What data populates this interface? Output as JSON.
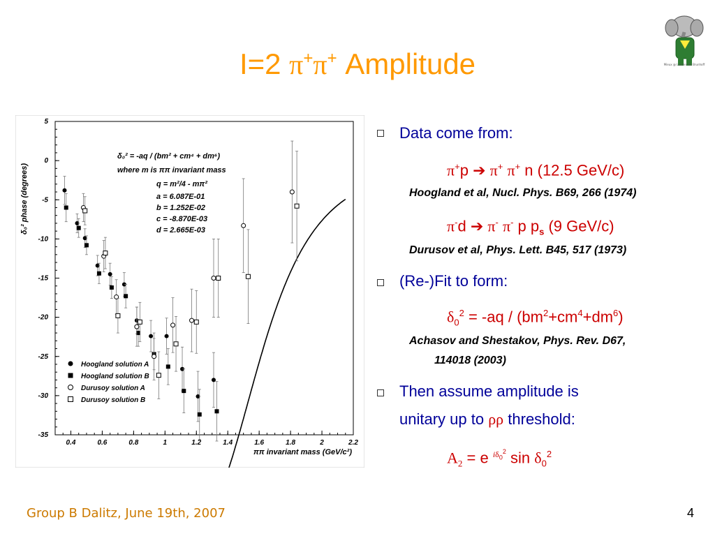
{
  "slide": {
    "title_prefix": "I=2 ",
    "title_greek": "π",
    "title_sup": "+",
    "title_suffix": " Amplitude",
    "footer": "Group B Dalitz, June 19th, 2007",
    "page_number": "4",
    "logo_caption": "Mieux @ Laurent de Brunhoff"
  },
  "colors": {
    "title": "#ff9900",
    "body_text": "#000099",
    "formula_red": "#cc0000",
    "footer": "#cc7a00"
  },
  "bullets": {
    "b1": "Data come from:",
    "r1_text": "p ",
    "r1_arrow": "➔",
    "r1_end": " n (12.5 GeV/c)",
    "ref1": "Hoogland et al, Nucl. Phys. B69, 266 (1974)",
    "r2_text": "d ",
    "r2_arrow": "➔",
    "r2_end": " p p",
    "r2_sub": "s",
    "r2_tail": " (9 GeV/c)",
    "ref2": "Durusov et al, Phys. Lett. B45, 517 (1973)",
    "b2": "(Re-)Fit to form:",
    "fit_formula": "= -aq / (bm",
    "fit_rest1": "+cm",
    "fit_rest2": "+dm",
    "fit_close": ")",
    "ref3a": "Achasov and Shestakov, Phys. Rev. D67,",
    "ref3b": "114018 (2003)",
    "b3a": "Then assume amplitude is",
    "b3b_pre": "unitary up to ",
    "b3b_greek": "ρρ",
    "b3b_post": " threshold:",
    "amp_A": "A",
    "amp_sub": "2",
    "amp_eq": " = e ",
    "amp_sin": " sin "
  },
  "chart_data": {
    "type": "scatter",
    "ylabel": "δ₀² phase (degrees)",
    "xlabel": "ππ invariant mass (GeV/c²)",
    "xlim": [
      0.3,
      2.2
    ],
    "ylim": [
      -35,
      5
    ],
    "xticks": [
      "0.4",
      "0.6",
      "0.8",
      "1",
      "1.2",
      "1.4",
      "1.6",
      "1.8",
      "2",
      "2.2"
    ],
    "yticks": [
      "5",
      "0",
      "-5",
      "-10",
      "-15",
      "-20",
      "-25",
      "-30",
      "-35"
    ],
    "annotation": {
      "formula": "δ₀² = -aq / (bm² + cm⁴ + dm⁶)",
      "where": "where  m  is  ππ  invariant mass",
      "q_def": "q = m²/4 - mπ²",
      "a": "a =  6.087E-01",
      "b": "b =  1.252E-02",
      "c": "c = -8.870E-03",
      "d": "d =  2.665E-03"
    },
    "legend": [
      "Hoogland solution A",
      "Hoogland solution B",
      "Durusoy solution A",
      "Durusoy solution B"
    ],
    "legend_placement": "bottom-left",
    "series": [
      {
        "name": "Hoogland solution A",
        "marker": "filled-circle",
        "points": [
          [
            0.36,
            -3.8,
            1.8
          ],
          [
            0.44,
            -8.0,
            1.2
          ],
          [
            0.49,
            -9.9,
            1.2
          ],
          [
            0.57,
            -13.4,
            1.3
          ],
          [
            0.65,
            -14.5,
            1.4
          ],
          [
            0.74,
            -15.8,
            1.5
          ],
          [
            0.82,
            -20.4,
            1.7
          ],
          [
            0.91,
            -22.4,
            2.0
          ],
          [
            1.01,
            -22.4,
            2.3
          ],
          [
            1.11,
            -26.6,
            2.8
          ],
          [
            1.21,
            -30.1,
            3.2
          ],
          [
            1.31,
            -28.0,
            3.5
          ]
        ]
      },
      {
        "name": "Hoogland solution B",
        "marker": "filled-square",
        "points": [
          [
            0.37,
            -6.0,
            1.8
          ],
          [
            0.45,
            -8.6,
            1.2
          ],
          [
            0.5,
            -10.8,
            1.2
          ],
          [
            0.58,
            -14.4,
            1.3
          ],
          [
            0.66,
            -16.2,
            1.4
          ],
          [
            0.75,
            -17.3,
            1.5
          ],
          [
            0.83,
            -22.0,
            1.7
          ],
          [
            0.93,
            -24.7,
            2.0
          ],
          [
            1.02,
            -26.3,
            2.3
          ],
          [
            1.12,
            -29.4,
            2.8
          ],
          [
            1.22,
            -32.4,
            3.2
          ],
          [
            1.33,
            -32.0,
            3.8
          ]
        ]
      },
      {
        "name": "Durusoy solution A",
        "marker": "open-circle",
        "points": [
          [
            0.48,
            -6.0,
            1.8
          ],
          [
            0.61,
            -12.2,
            2.0
          ],
          [
            0.69,
            -17.4,
            2.2
          ],
          [
            0.82,
            -21.2,
            2.5
          ],
          [
            0.93,
            -25.0,
            3.0
          ],
          [
            1.05,
            -21.0,
            3.5
          ],
          [
            1.17,
            -20.4,
            4.0
          ],
          [
            1.31,
            -15.0,
            5.0
          ],
          [
            1.5,
            -8.3,
            6.0
          ],
          [
            1.81,
            -4.0,
            6.5
          ]
        ]
      },
      {
        "name": "Durusoy solution B",
        "marker": "open-square",
        "points": [
          [
            0.49,
            -6.4,
            1.8
          ],
          [
            0.62,
            -11.8,
            2.0
          ],
          [
            0.7,
            -19.8,
            2.2
          ],
          [
            0.84,
            -20.6,
            2.5
          ],
          [
            0.96,
            -27.4,
            3.0
          ],
          [
            1.07,
            -23.4,
            3.5
          ],
          [
            1.2,
            -20.6,
            4.0
          ],
          [
            1.34,
            -15.0,
            5.0
          ],
          [
            1.53,
            -14.8,
            6.0
          ],
          [
            1.84,
            -5.8,
            7.0
          ]
        ]
      }
    ],
    "fit": {
      "a": 0.6087,
      "b": 0.01252,
      "c": -0.00887,
      "d": 0.002665,
      "m_pi": 0.1396
    }
  }
}
